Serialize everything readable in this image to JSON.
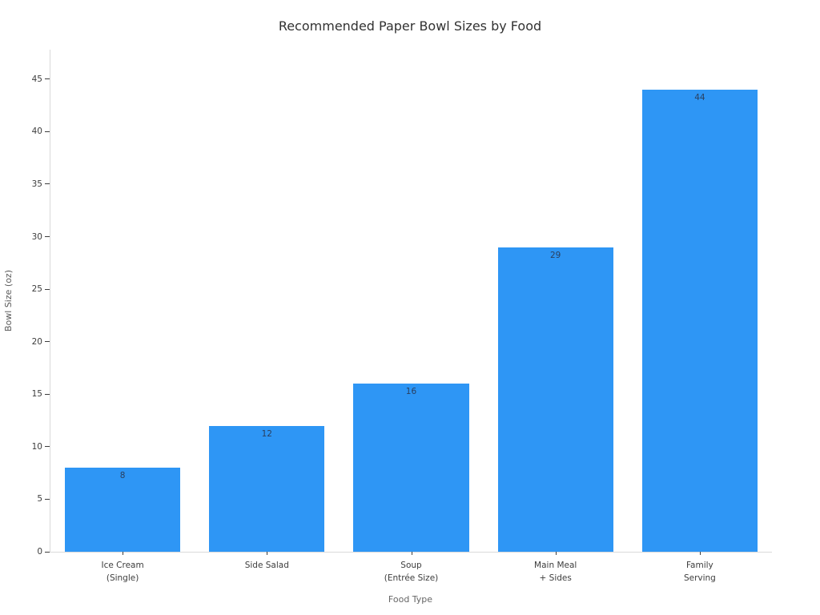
{
  "chart_data": {
    "type": "bar",
    "title": "Recommended Paper Bowl Sizes by Food",
    "categories": [
      "Ice Cream\n(Single)",
      "Side Salad",
      "Soup\n(Entrée Size)",
      "Main Meal\n+ Sides",
      "Family\nServing"
    ],
    "values": [
      8,
      12,
      16,
      29,
      44
    ],
    "xlabel": "Food Type",
    "ylabel": "Bowl Size (oz)",
    "ylim": [
      0,
      47.8
    ],
    "yticks": [
      0,
      5,
      10,
      15,
      20,
      25,
      30,
      35,
      40,
      45
    ],
    "bar_color": "#2e96f5",
    "bar_width_fraction": 0.8,
    "value_label_color": "#2a3f5f",
    "grid": false,
    "legend": "none"
  }
}
